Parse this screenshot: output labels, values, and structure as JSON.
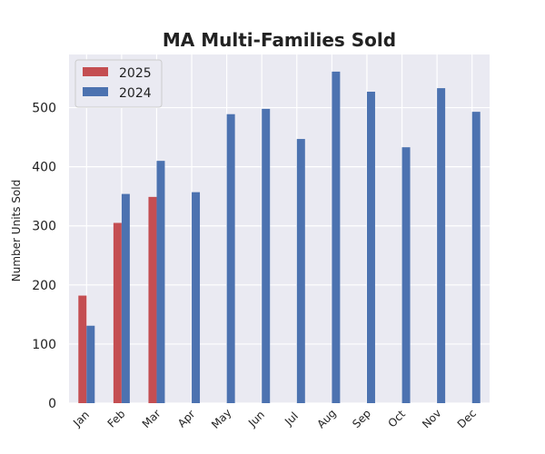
{
  "chart_data": {
    "type": "bar",
    "title": "MA Multi-Families Sold",
    "xlabel": "",
    "ylabel": "Number Units Sold",
    "categories": [
      "Jan",
      "Feb",
      "Mar",
      "Apr",
      "May",
      "Jun",
      "Jul",
      "Aug",
      "Sep",
      "Oct",
      "Nov",
      "Dec"
    ],
    "series": [
      {
        "name": "2025",
        "color": "#c44e52",
        "values": [
          182,
          305,
          349,
          null,
          null,
          null,
          null,
          null,
          null,
          null,
          null,
          null
        ]
      },
      {
        "name": "2024",
        "color": "#4c72b0",
        "values": [
          131,
          354,
          410,
          357,
          489,
          498,
          447,
          561,
          527,
          433,
          533,
          493
        ]
      }
    ],
    "ylim": [
      0,
      590
    ],
    "yticks": [
      0,
      100,
      200,
      300,
      400,
      500
    ],
    "grid": true,
    "legend": "top-left",
    "background": "#eaeaf2"
  }
}
